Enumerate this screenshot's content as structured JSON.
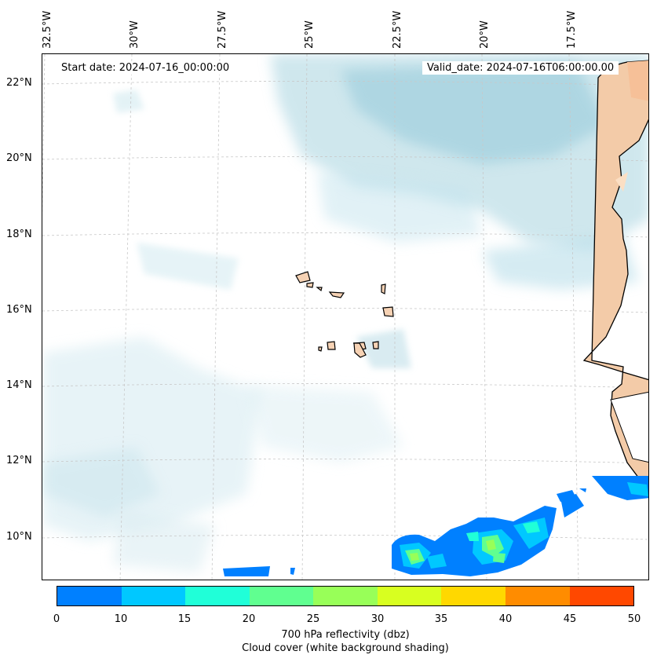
{
  "map": {
    "start_date_text": "Start date: 2024-07-16_00:00:00",
    "valid_date_text": "Valid_date: 2024-07-16T06:00:00.00",
    "longitude_labels": [
      "32.5°W",
      "30°W",
      "27.5°W",
      "25°W",
      "22.5°W",
      "20°W",
      "17.5°W"
    ],
    "latitude_labels": [
      "22°N",
      "20°N",
      "18°N",
      "16°N",
      "14°N",
      "12°N",
      "10°N"
    ]
  },
  "colorbar": {
    "ticks": [
      "0",
      "10",
      "15",
      "20",
      "25",
      "30",
      "35",
      "40",
      "45",
      "50"
    ],
    "colors": [
      "#0080ff",
      "#00c8ff",
      "#20ffd8",
      "#60ff90",
      "#98ff58",
      "#d8ff20",
      "#ffd800",
      "#ff8c00",
      "#ff4800"
    ],
    "label_line1": "700 hPa reflectivity (dbz)",
    "label_line2": "Cloud cover (white background shading)"
  }
}
